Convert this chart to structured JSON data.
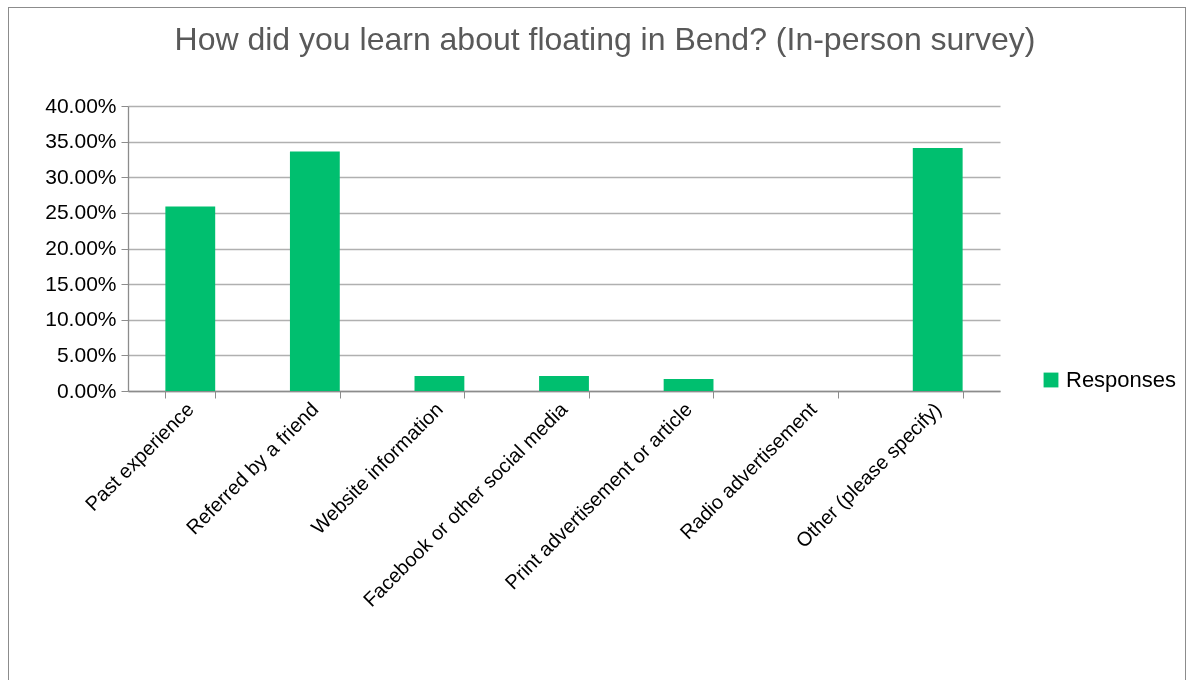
{
  "chart_data": {
    "type": "bar",
    "title": "How did you learn about floating in Bend? (In-person survey)",
    "categories": [
      "Past experience",
      "Referred by a friend",
      "Website information",
      "Facebook or other social media",
      "Print advertisement or article",
      "Radio advertisement",
      "Other (please specify)"
    ],
    "series": [
      {
        "name": "Responses",
        "color": "#00bf6f",
        "values": [
          25.9,
          33.6,
          2.1,
          2.1,
          1.7,
          0,
          34.1
        ]
      }
    ],
    "ylim": [
      0,
      40
    ],
    "yticks": [
      {
        "value": 0,
        "label": "0.00%"
      },
      {
        "value": 5,
        "label": "5.00%"
      },
      {
        "value": 10,
        "label": "10.00%"
      },
      {
        "value": 15,
        "label": "15.00%"
      },
      {
        "value": 20,
        "label": "20.00%"
      },
      {
        "value": 25,
        "label": "25.00%"
      },
      {
        "value": 30,
        "label": "30.00%"
      },
      {
        "value": 35,
        "label": "35.00%"
      },
      {
        "value": 40,
        "label": "40.00%"
      }
    ],
    "grid": "y",
    "legend": "right"
  }
}
